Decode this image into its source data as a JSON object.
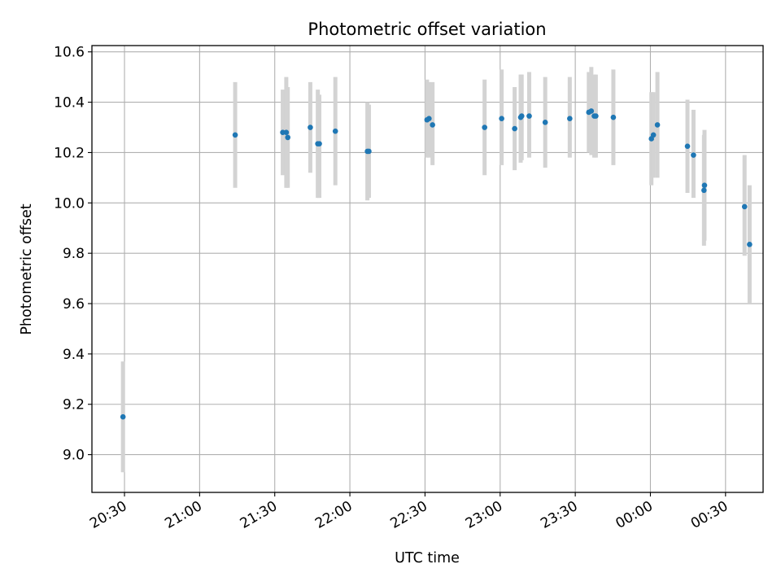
{
  "chart_data": {
    "type": "scatter",
    "title": "Photometric offset variation",
    "xlabel": "UTC time",
    "ylabel": "Photometric offset",
    "x_is_time": true,
    "xlim": [
      "20:17",
      "00:45 (+1 day)"
    ],
    "ylim": [
      8.85,
      10.625
    ],
    "x_ticks": [
      "20:30",
      "21:00",
      "21:30",
      "22:00",
      "22:30",
      "23:00",
      "23:30",
      "00:00",
      "00:30"
    ],
    "y_ticks": [
      "9.0",
      "9.2",
      "9.4",
      "9.6",
      "9.8",
      "10.0",
      "10.2",
      "10.4",
      "10.6"
    ],
    "grid": true,
    "marker_color": "#1f77b4",
    "errorbar_color": "#d3d3d3",
    "points": [
      {
        "time": "20:29.4",
        "y": 9.15,
        "ylow": 8.93,
        "yhigh": 9.37
      },
      {
        "time": "21:14.2",
        "y": 10.27,
        "ylow": 10.06,
        "yhigh": 10.48
      },
      {
        "time": "21:33.2",
        "y": 10.28,
        "ylow": 10.11,
        "yhigh": 10.45
      },
      {
        "time": "21:34.6",
        "y": 10.28,
        "ylow": 10.06,
        "yhigh": 10.5
      },
      {
        "time": "21:35.2",
        "y": 10.26,
        "ylow": 10.06,
        "yhigh": 10.46
      },
      {
        "time": "21:44.2",
        "y": 10.3,
        "ylow": 10.12,
        "yhigh": 10.48
      },
      {
        "time": "21:47.2",
        "y": 10.235,
        "ylow": 10.02,
        "yhigh": 10.45
      },
      {
        "time": "21:47.8",
        "y": 10.235,
        "ylow": 10.02,
        "yhigh": 10.43
      },
      {
        "time": "21:54.2",
        "y": 10.285,
        "ylow": 10.07,
        "yhigh": 10.5
      },
      {
        "time": "22:07.0",
        "y": 10.205,
        "ylow": 10.01,
        "yhigh": 10.4
      },
      {
        "time": "22:07.6",
        "y": 10.205,
        "ylow": 10.02,
        "yhigh": 10.39
      },
      {
        "time": "22:30.8",
        "y": 10.33,
        "ylow": 10.18,
        "yhigh": 10.49
      },
      {
        "time": "22:31.6",
        "y": 10.335,
        "ylow": 10.18,
        "yhigh": 10.48
      },
      {
        "time": "22:33.0",
        "y": 10.31,
        "ylow": 10.15,
        "yhigh": 10.48
      },
      {
        "time": "22:53.8",
        "y": 10.3,
        "ylow": 10.11,
        "yhigh": 10.49
      },
      {
        "time": "23:00.6",
        "y": 10.335,
        "ylow": 10.15,
        "yhigh": 10.53
      },
      {
        "time": "23:05.8",
        "y": 10.295,
        "ylow": 10.13,
        "yhigh": 10.46
      },
      {
        "time": "23:08.2",
        "y": 10.34,
        "ylow": 10.16,
        "yhigh": 10.51
      },
      {
        "time": "23:08.6",
        "y": 10.345,
        "ylow": 10.17,
        "yhigh": 10.51
      },
      {
        "time": "23:11.6",
        "y": 10.345,
        "ylow": 10.18,
        "yhigh": 10.52
      },
      {
        "time": "23:18.0",
        "y": 10.32,
        "ylow": 10.14,
        "yhigh": 10.5
      },
      {
        "time": "23:27.8",
        "y": 10.335,
        "ylow": 10.18,
        "yhigh": 10.5
      },
      {
        "time": "23:35.4",
        "y": 10.36,
        "ylow": 10.2,
        "yhigh": 10.52
      },
      {
        "time": "23:36.4",
        "y": 10.365,
        "ylow": 10.19,
        "yhigh": 10.54
      },
      {
        "time": "23:37.6",
        "y": 10.345,
        "ylow": 10.18,
        "yhigh": 10.51
      },
      {
        "time": "23:38.2",
        "y": 10.345,
        "ylow": 10.18,
        "yhigh": 10.51
      },
      {
        "time": "23:45.2",
        "y": 10.34,
        "ylow": 10.15,
        "yhigh": 10.53
      },
      {
        "time": "00:00.4",
        "y": 10.255,
        "ylow": 10.07,
        "yhigh": 10.44
      },
      {
        "time": "00:01.2",
        "y": 10.27,
        "ylow": 10.1,
        "yhigh": 10.44
      },
      {
        "time": "00:02.8",
        "y": 10.31,
        "ylow": 10.1,
        "yhigh": 10.52
      },
      {
        "time": "00:14.8",
        "y": 10.225,
        "ylow": 10.04,
        "yhigh": 10.41
      },
      {
        "time": "00:17.2",
        "y": 10.19,
        "ylow": 10.02,
        "yhigh": 10.37
      },
      {
        "time": "00:21.6",
        "y": 10.07,
        "ylow": 9.85,
        "yhigh": 10.29
      },
      {
        "time": "00:21.4",
        "y": 10.05,
        "ylow": 9.83,
        "yhigh": 10.27
      },
      {
        "time": "00:37.6",
        "y": 9.985,
        "ylow": 9.79,
        "yhigh": 10.19
      },
      {
        "time": "00:39.6",
        "y": 9.835,
        "ylow": 9.6,
        "yhigh": 10.07
      }
    ]
  }
}
